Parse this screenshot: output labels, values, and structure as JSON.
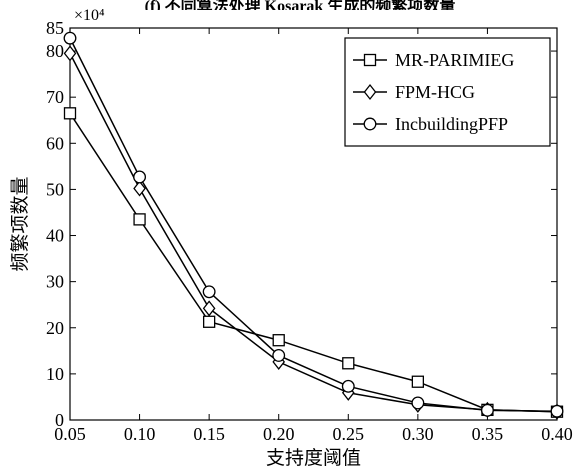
{
  "chart_data": {
    "type": "line",
    "title": "(f) 不同算法处理 Kosarak 生成的频繁项数量",
    "xlabel": "支持度阈值",
    "ylabel": "频繁项数量",
    "y_multiplier": "×10⁴",
    "x": [
      0.05,
      0.1,
      0.15,
      0.2,
      0.25,
      0.3,
      0.35,
      0.4
    ],
    "x_tick_labels": [
      "0.05",
      "0.10",
      "0.15",
      "0.20",
      "0.25",
      "0.30",
      "0.35",
      "0.40"
    ],
    "xlim": [
      0.05,
      0.4
    ],
    "ylim": [
      0,
      85
    ],
    "y_ticks": [
      0,
      10,
      20,
      30,
      40,
      50,
      60,
      70,
      80,
      85
    ],
    "grid": false,
    "legend_position": "top-right",
    "series": [
      {
        "name": "MR-PARIMIEG",
        "marker": "square",
        "values": [
          66.5,
          43.5,
          21.3,
          17.3,
          12.3,
          8.3,
          2.2,
          1.8
        ]
      },
      {
        "name": "FPM-HCG",
        "marker": "diamond",
        "values": [
          79.5,
          50.2,
          24.2,
          12.6,
          5.9,
          3.3,
          2.2,
          1.8
        ]
      },
      {
        "name": "IncbuildingPFP",
        "marker": "circle",
        "values": [
          82.8,
          52.7,
          27.8,
          14.0,
          7.3,
          3.7,
          2.1,
          1.9
        ]
      }
    ]
  }
}
